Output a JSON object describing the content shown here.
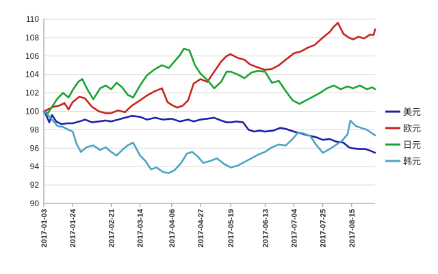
{
  "chart_data": {
    "type": "line",
    "title": "",
    "xlabel": "",
    "ylabel": "",
    "ylim": [
      90,
      110
    ],
    "yticks": [
      90,
      92,
      94,
      96,
      98,
      100,
      102,
      104,
      106,
      108,
      110
    ],
    "x_range": [
      "2017-01-03",
      "2017-09-01"
    ],
    "x_ticks": [
      "2017-01-03",
      "2017-01-24",
      "2017-02-21",
      "2017-03-14",
      "2017-04-06",
      "2017-04-27",
      "2017-05-19",
      "2017-06-13",
      "2017-07-04",
      "2017-07-25",
      "2017-08-15"
    ],
    "grid": "horizontal",
    "legend": "right",
    "series": [
      {
        "name": "美元",
        "color": "#1f1fa8",
        "points": [
          [
            "2017-01-03",
            100.0
          ],
          [
            "2017-01-05",
            99.5
          ],
          [
            "2017-01-07",
            98.8
          ],
          [
            "2017-01-09",
            99.6
          ],
          [
            "2017-01-12",
            98.9
          ],
          [
            "2017-01-16",
            98.6
          ],
          [
            "2017-01-20",
            98.7
          ],
          [
            "2017-01-24",
            98.7
          ],
          [
            "2017-01-29",
            98.9
          ],
          [
            "2017-02-02",
            99.1
          ],
          [
            "2017-02-07",
            98.8
          ],
          [
            "2017-02-12",
            98.9
          ],
          [
            "2017-02-17",
            99.0
          ],
          [
            "2017-02-21",
            98.9
          ],
          [
            "2017-02-26",
            99.1
          ],
          [
            "2017-03-03",
            99.3
          ],
          [
            "2017-03-08",
            99.5
          ],
          [
            "2017-03-14",
            99.4
          ],
          [
            "2017-03-19",
            99.1
          ],
          [
            "2017-03-25",
            99.3
          ],
          [
            "2017-03-31",
            99.1
          ],
          [
            "2017-04-06",
            99.2
          ],
          [
            "2017-04-12",
            98.9
          ],
          [
            "2017-04-18",
            99.1
          ],
          [
            "2017-04-22",
            98.9
          ],
          [
            "2017-04-27",
            99.1
          ],
          [
            "2017-05-02",
            99.2
          ],
          [
            "2017-05-07",
            99.3
          ],
          [
            "2017-05-12",
            99.0
          ],
          [
            "2017-05-16",
            98.8
          ],
          [
            "2017-05-19",
            98.8
          ],
          [
            "2017-05-23",
            98.9
          ],
          [
            "2017-05-28",
            98.8
          ],
          [
            "2017-06-01",
            98.0
          ],
          [
            "2017-06-05",
            97.8
          ],
          [
            "2017-06-09",
            97.9
          ],
          [
            "2017-06-13",
            97.8
          ],
          [
            "2017-06-19",
            97.9
          ],
          [
            "2017-06-24",
            98.2
          ],
          [
            "2017-06-28",
            98.1
          ],
          [
            "2017-07-04",
            97.8
          ],
          [
            "2017-07-09",
            97.6
          ],
          [
            "2017-07-14",
            97.4
          ],
          [
            "2017-07-20",
            97.2
          ],
          [
            "2017-07-25",
            96.9
          ],
          [
            "2017-07-30",
            97.0
          ],
          [
            "2017-08-04",
            96.7
          ],
          [
            "2017-08-09",
            96.6
          ],
          [
            "2017-08-13",
            96.1
          ],
          [
            "2017-08-15",
            96.0
          ],
          [
            "2017-08-20",
            95.9
          ],
          [
            "2017-08-25",
            95.9
          ],
          [
            "2017-08-29",
            95.7
          ],
          [
            "2017-09-01",
            95.5
          ]
        ]
      },
      {
        "name": "欧元",
        "color": "#c8241c",
        "points": [
          [
            "2017-01-03",
            100.0
          ],
          [
            "2017-01-06",
            100.2
          ],
          [
            "2017-01-10",
            100.5
          ],
          [
            "2017-01-14",
            100.6
          ],
          [
            "2017-01-18",
            100.9
          ],
          [
            "2017-01-21",
            100.2
          ],
          [
            "2017-01-24",
            101.0
          ],
          [
            "2017-01-29",
            101.6
          ],
          [
            "2017-02-02",
            101.4
          ],
          [
            "2017-02-07",
            100.5
          ],
          [
            "2017-02-12",
            100.0
          ],
          [
            "2017-02-17",
            99.8
          ],
          [
            "2017-02-21",
            99.8
          ],
          [
            "2017-02-26",
            100.1
          ],
          [
            "2017-03-03",
            99.9
          ],
          [
            "2017-03-08",
            100.6
          ],
          [
            "2017-03-14",
            101.2
          ],
          [
            "2017-03-19",
            101.7
          ],
          [
            "2017-03-25",
            102.2
          ],
          [
            "2017-03-30",
            102.5
          ],
          [
            "2017-04-03",
            101.0
          ],
          [
            "2017-04-06",
            100.7
          ],
          [
            "2017-04-10",
            100.4
          ],
          [
            "2017-04-14",
            100.6
          ],
          [
            "2017-04-18",
            101.2
          ],
          [
            "2017-04-22",
            103.0
          ],
          [
            "2017-04-27",
            103.5
          ],
          [
            "2017-05-02",
            103.2
          ],
          [
            "2017-05-07",
            104.3
          ],
          [
            "2017-05-12",
            105.4
          ],
          [
            "2017-05-16",
            106.0
          ],
          [
            "2017-05-19",
            106.2
          ],
          [
            "2017-05-24",
            105.8
          ],
          [
            "2017-05-29",
            105.6
          ],
          [
            "2017-06-02",
            105.1
          ],
          [
            "2017-06-07",
            104.8
          ],
          [
            "2017-06-13",
            104.5
          ],
          [
            "2017-06-18",
            104.6
          ],
          [
            "2017-06-23",
            105.0
          ],
          [
            "2017-06-28",
            105.6
          ],
          [
            "2017-07-04",
            106.3
          ],
          [
            "2017-07-09",
            106.5
          ],
          [
            "2017-07-14",
            106.9
          ],
          [
            "2017-07-19",
            107.2
          ],
          [
            "2017-07-25",
            108.0
          ],
          [
            "2017-07-30",
            108.6
          ],
          [
            "2017-08-02",
            109.2
          ],
          [
            "2017-08-05",
            109.6
          ],
          [
            "2017-08-09",
            108.4
          ],
          [
            "2017-08-13",
            108.0
          ],
          [
            "2017-08-16",
            107.8
          ],
          [
            "2017-08-20",
            108.1
          ],
          [
            "2017-08-24",
            107.9
          ],
          [
            "2017-08-28",
            108.3
          ],
          [
            "2017-08-31",
            108.3
          ],
          [
            "2017-09-01",
            108.9
          ]
        ]
      },
      {
        "name": "日元",
        "color": "#17a330",
        "points": [
          [
            "2017-01-03",
            100.0
          ],
          [
            "2017-01-06",
            99.8
          ],
          [
            "2017-01-09",
            100.5
          ],
          [
            "2017-01-13",
            101.4
          ],
          [
            "2017-01-17",
            102.0
          ],
          [
            "2017-01-21",
            101.5
          ],
          [
            "2017-01-24",
            102.3
          ],
          [
            "2017-01-28",
            103.2
          ],
          [
            "2017-01-31",
            103.5
          ],
          [
            "2017-02-04",
            102.3
          ],
          [
            "2017-02-08",
            101.3
          ],
          [
            "2017-02-13",
            102.5
          ],
          [
            "2017-02-17",
            102.8
          ],
          [
            "2017-02-21",
            102.4
          ],
          [
            "2017-02-25",
            103.1
          ],
          [
            "2017-03-01",
            102.6
          ],
          [
            "2017-03-05",
            101.8
          ],
          [
            "2017-03-09",
            101.5
          ],
          [
            "2017-03-14",
            102.8
          ],
          [
            "2017-03-19",
            103.9
          ],
          [
            "2017-03-25",
            104.6
          ],
          [
            "2017-03-30",
            105.0
          ],
          [
            "2017-04-04",
            104.7
          ],
          [
            "2017-04-08",
            105.4
          ],
          [
            "2017-04-12",
            106.1
          ],
          [
            "2017-04-15",
            106.8
          ],
          [
            "2017-04-19",
            106.6
          ],
          [
            "2017-04-23",
            105.0
          ],
          [
            "2017-04-27",
            104.1
          ],
          [
            "2017-05-02",
            103.4
          ],
          [
            "2017-05-07",
            102.5
          ],
          [
            "2017-05-12",
            103.2
          ],
          [
            "2017-05-16",
            104.3
          ],
          [
            "2017-05-19",
            104.3
          ],
          [
            "2017-05-24",
            104.0
          ],
          [
            "2017-05-29",
            103.6
          ],
          [
            "2017-06-03",
            104.2
          ],
          [
            "2017-06-08",
            104.4
          ],
          [
            "2017-06-13",
            104.3
          ],
          [
            "2017-06-18",
            103.1
          ],
          [
            "2017-06-23",
            103.3
          ],
          [
            "2017-06-28",
            102.2
          ],
          [
            "2017-07-03",
            101.2
          ],
          [
            "2017-07-08",
            100.8
          ],
          [
            "2017-07-13",
            101.2
          ],
          [
            "2017-07-18",
            101.6
          ],
          [
            "2017-07-23",
            102.0
          ],
          [
            "2017-07-28",
            102.5
          ],
          [
            "2017-08-02",
            102.8
          ],
          [
            "2017-08-07",
            102.4
          ],
          [
            "2017-08-12",
            102.7
          ],
          [
            "2017-08-16",
            102.5
          ],
          [
            "2017-08-21",
            102.8
          ],
          [
            "2017-08-26",
            102.4
          ],
          [
            "2017-08-30",
            102.6
          ],
          [
            "2017-09-01",
            102.4
          ]
        ]
      },
      {
        "name": "韩元",
        "color": "#4ba3c3",
        "points": [
          [
            "2017-01-03",
            100.0
          ],
          [
            "2017-01-06",
            99.6
          ],
          [
            "2017-01-09",
            99.1
          ],
          [
            "2017-01-13",
            98.4
          ],
          [
            "2017-01-17",
            98.3
          ],
          [
            "2017-01-21",
            98.0
          ],
          [
            "2017-01-24",
            97.8
          ],
          [
            "2017-01-27",
            96.4
          ],
          [
            "2017-01-30",
            95.6
          ],
          [
            "2017-02-03",
            96.1
          ],
          [
            "2017-02-08",
            96.3
          ],
          [
            "2017-02-13",
            95.8
          ],
          [
            "2017-02-17",
            96.1
          ],
          [
            "2017-02-21",
            95.6
          ],
          [
            "2017-02-25",
            95.2
          ],
          [
            "2017-03-01",
            95.8
          ],
          [
            "2017-03-05",
            96.3
          ],
          [
            "2017-03-09",
            96.6
          ],
          [
            "2017-03-14",
            95.2
          ],
          [
            "2017-03-18",
            94.6
          ],
          [
            "2017-03-22",
            93.7
          ],
          [
            "2017-03-26",
            93.9
          ],
          [
            "2017-03-31",
            93.4
          ],
          [
            "2017-04-04",
            93.3
          ],
          [
            "2017-04-08",
            93.6
          ],
          [
            "2017-04-13",
            94.4
          ],
          [
            "2017-04-17",
            95.4
          ],
          [
            "2017-04-21",
            95.6
          ],
          [
            "2017-04-25",
            95.1
          ],
          [
            "2017-04-29",
            94.4
          ],
          [
            "2017-05-04",
            94.6
          ],
          [
            "2017-05-09",
            94.9
          ],
          [
            "2017-05-14",
            94.3
          ],
          [
            "2017-05-19",
            93.9
          ],
          [
            "2017-05-24",
            94.1
          ],
          [
            "2017-05-29",
            94.5
          ],
          [
            "2017-06-03",
            94.9
          ],
          [
            "2017-06-08",
            95.3
          ],
          [
            "2017-06-13",
            95.6
          ],
          [
            "2017-06-18",
            96.1
          ],
          [
            "2017-06-23",
            96.4
          ],
          [
            "2017-06-28",
            96.3
          ],
          [
            "2017-07-03",
            97.0
          ],
          [
            "2017-07-07",
            97.7
          ],
          [
            "2017-07-11",
            97.6
          ],
          [
            "2017-07-16",
            97.3
          ],
          [
            "2017-07-20",
            96.4
          ],
          [
            "2017-07-25",
            95.5
          ],
          [
            "2017-07-30",
            95.9
          ],
          [
            "2017-08-04",
            96.4
          ],
          [
            "2017-08-08",
            96.8
          ],
          [
            "2017-08-12",
            97.5
          ],
          [
            "2017-08-14",
            99.0
          ],
          [
            "2017-08-18",
            98.4
          ],
          [
            "2017-08-22",
            98.2
          ],
          [
            "2017-08-26",
            98.0
          ],
          [
            "2017-08-29",
            97.7
          ],
          [
            "2017-09-01",
            97.4
          ]
        ]
      }
    ]
  }
}
